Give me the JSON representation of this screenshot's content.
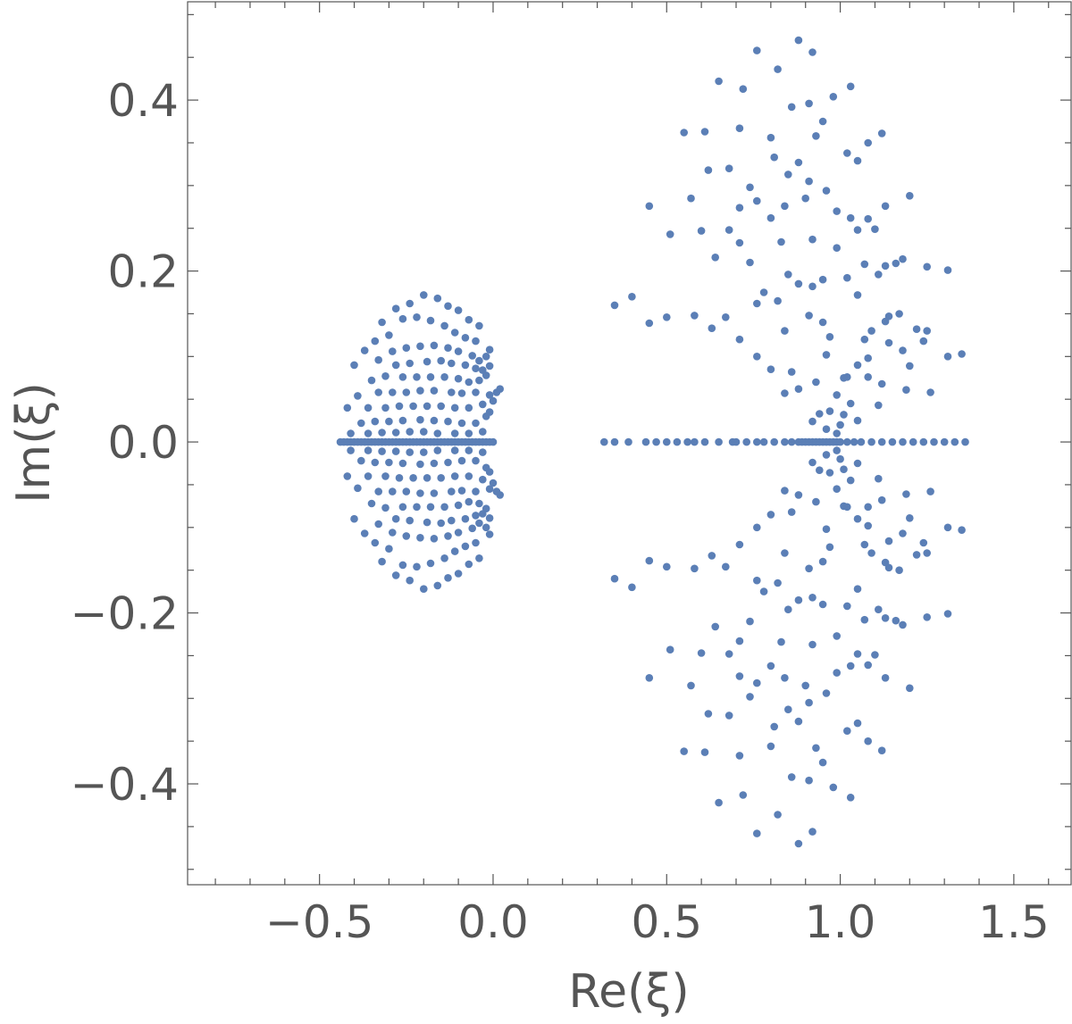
{
  "chart_data": {
    "type": "scatter",
    "title": "",
    "xlabel": "Re(ξ)",
    "ylabel": "Im(ξ)",
    "xlim": [
      -0.88,
      1.665
    ],
    "ylim": [
      -0.518,
      0.515
    ],
    "xticks": [
      {
        "value": -0.5,
        "label": "−0.5"
      },
      {
        "value": 0.0,
        "label": "0.0"
      },
      {
        "value": 0.5,
        "label": "0.5"
      },
      {
        "value": 1.0,
        "label": "1.0"
      },
      {
        "value": 1.5,
        "label": "1.5"
      }
    ],
    "yticks": [
      {
        "value": 0.4,
        "label": "0.4"
      },
      {
        "value": 0.2,
        "label": "0.2"
      },
      {
        "value": 0.0,
        "label": "0.0"
      },
      {
        "value": -0.2,
        "label": "−0.2"
      },
      {
        "value": -0.4,
        "label": "−0.4"
      }
    ],
    "grid": false,
    "marker_color": "#5b7fb6",
    "symmetric_about_real_axis": true,
    "series": [
      {
        "real_axis_points": [
          -0.44,
          -0.43,
          -0.42,
          -0.41,
          -0.4,
          -0.39,
          -0.38,
          -0.37,
          -0.36,
          -0.35,
          -0.34,
          -0.33,
          -0.32,
          -0.31,
          -0.3,
          -0.29,
          -0.28,
          -0.27,
          -0.26,
          -0.25,
          -0.24,
          -0.23,
          -0.22,
          -0.21,
          -0.2,
          -0.19,
          -0.18,
          -0.17,
          -0.16,
          -0.15,
          -0.14,
          -0.13,
          -0.12,
          -0.11,
          -0.1,
          -0.09,
          -0.08,
          -0.07,
          -0.06,
          -0.05,
          -0.04,
          -0.03,
          -0.02,
          -0.01,
          0.0
        ],
        "upper_points": [
          [
            -0.2,
            0.172
          ],
          [
            -0.24,
            0.162
          ],
          [
            -0.28,
            0.156
          ],
          [
            -0.32,
            0.14
          ],
          [
            -0.37,
            0.107
          ],
          [
            -0.4,
            0.09
          ],
          [
            -0.16,
            0.168
          ],
          [
            -0.13,
            0.159
          ],
          [
            -0.1,
            0.154
          ],
          [
            -0.07,
            0.143
          ],
          [
            -0.04,
            0.136
          ],
          [
            -0.26,
            0.144
          ],
          [
            -0.22,
            0.146
          ],
          [
            -0.18,
            0.142
          ],
          [
            -0.14,
            0.136
          ],
          [
            -0.11,
            0.128
          ],
          [
            -0.08,
            0.122
          ],
          [
            -0.05,
            0.118
          ],
          [
            -0.3,
            0.125
          ],
          [
            -0.34,
            0.118
          ],
          [
            -0.25,
            0.11
          ],
          [
            -0.21,
            0.112
          ],
          [
            -0.17,
            0.113
          ],
          [
            -0.13,
            0.11
          ],
          [
            -0.1,
            0.106
          ],
          [
            -0.06,
            0.101
          ],
          [
            -0.04,
            0.095
          ],
          [
            -0.02,
            0.1
          ],
          [
            -0.01,
            0.108
          ],
          [
            -0.29,
            0.106
          ],
          [
            -0.33,
            0.096
          ],
          [
            -0.28,
            0.09
          ],
          [
            -0.24,
            0.092
          ],
          [
            -0.19,
            0.094
          ],
          [
            -0.15,
            0.095
          ],
          [
            -0.12,
            0.092
          ],
          [
            -0.08,
            0.09
          ],
          [
            -0.05,
            0.086
          ],
          [
            -0.03,
            0.084
          ],
          [
            -0.01,
            0.089
          ],
          [
            -0.35,
            0.072
          ],
          [
            -0.31,
            0.077
          ],
          [
            -0.26,
            0.076
          ],
          [
            -0.22,
            0.076
          ],
          [
            -0.18,
            0.076
          ],
          [
            -0.14,
            0.076
          ],
          [
            -0.1,
            0.074
          ],
          [
            -0.07,
            0.07
          ],
          [
            -0.04,
            0.072
          ],
          [
            -0.02,
            0.078
          ],
          [
            -0.39,
            0.054
          ],
          [
            -0.33,
            0.058
          ],
          [
            -0.29,
            0.058
          ],
          [
            -0.25,
            0.058
          ],
          [
            -0.21,
            0.06
          ],
          [
            -0.17,
            0.06
          ],
          [
            -0.12,
            0.058
          ],
          [
            -0.09,
            0.057
          ],
          [
            -0.05,
            0.058
          ],
          [
            -0.01,
            0.055
          ],
          [
            0.01,
            0.058
          ],
          [
            0.02,
            0.062
          ],
          [
            -0.42,
            0.04
          ],
          [
            -0.36,
            0.04
          ],
          [
            -0.31,
            0.04
          ],
          [
            -0.27,
            0.042
          ],
          [
            -0.23,
            0.042
          ],
          [
            -0.19,
            0.042
          ],
          [
            -0.15,
            0.042
          ],
          [
            -0.11,
            0.04
          ],
          [
            -0.07,
            0.04
          ],
          [
            -0.03,
            0.044
          ],
          [
            0.0,
            0.048
          ],
          [
            -0.01,
            0.035
          ],
          [
            -0.38,
            0.022
          ],
          [
            -0.34,
            0.024
          ],
          [
            -0.3,
            0.024
          ],
          [
            -0.26,
            0.025
          ],
          [
            -0.21,
            0.026
          ],
          [
            -0.17,
            0.025
          ],
          [
            -0.13,
            0.024
          ],
          [
            -0.09,
            0.022
          ],
          [
            -0.05,
            0.022
          ],
          [
            -0.02,
            0.03
          ],
          [
            -0.41,
            0.01
          ],
          [
            -0.36,
            0.01
          ],
          [
            -0.32,
            0.011
          ],
          [
            -0.28,
            0.011
          ],
          [
            -0.24,
            0.012
          ],
          [
            -0.2,
            0.012
          ],
          [
            -0.16,
            0.01
          ],
          [
            -0.11,
            0.01
          ],
          [
            -0.07,
            0.01
          ],
          [
            -0.03,
            0.012
          ],
          [
            0.88,
            0.47
          ],
          [
            0.76,
            0.458
          ],
          [
            0.92,
            0.456
          ],
          [
            0.82,
            0.436
          ],
          [
            0.65,
            0.422
          ],
          [
            0.72,
            0.413
          ],
          [
            1.03,
            0.416
          ],
          [
            0.98,
            0.404
          ],
          [
            0.86,
            0.392
          ],
          [
            0.91,
            0.396
          ],
          [
            0.71,
            0.367
          ],
          [
            0.95,
            0.375
          ],
          [
            0.8,
            0.356
          ],
          [
            0.61,
            0.363
          ],
          [
            0.55,
            0.362
          ],
          [
            0.93,
            0.358
          ],
          [
            1.12,
            0.361
          ],
          [
            1.08,
            0.35
          ],
          [
            0.81,
            0.333
          ],
          [
            0.88,
            0.327
          ],
          [
            1.02,
            0.338
          ],
          [
            1.05,
            0.329
          ],
          [
            0.68,
            0.32
          ],
          [
            0.62,
            0.318
          ],
          [
            0.85,
            0.313
          ],
          [
            0.91,
            0.305
          ],
          [
            0.74,
            0.298
          ],
          [
            0.96,
            0.294
          ],
          [
            0.9,
            0.285
          ],
          [
            0.76,
            0.282
          ],
          [
            0.57,
            0.285
          ],
          [
            1.2,
            0.288
          ],
          [
            1.13,
            0.276
          ],
          [
            0.71,
            0.274
          ],
          [
            0.45,
            0.276
          ],
          [
            0.84,
            0.276
          ],
          [
            0.99,
            0.27
          ],
          [
            1.03,
            0.262
          ],
          [
            1.08,
            0.261
          ],
          [
            0.8,
            0.262
          ],
          [
            1.05,
            0.248
          ],
          [
            0.68,
            0.248
          ],
          [
            0.6,
            0.247
          ],
          [
            0.51,
            0.243
          ],
          [
            0.92,
            0.237
          ],
          [
            0.83,
            0.234
          ],
          [
            1.1,
            0.249
          ],
          [
            0.71,
            0.233
          ],
          [
            0.99,
            0.227
          ],
          [
            1.18,
            0.214
          ],
          [
            1.16,
            0.209
          ],
          [
            0.64,
            0.216
          ],
          [
            0.74,
            0.21
          ],
          [
            1.07,
            0.208
          ],
          [
            1.25,
            0.205
          ],
          [
            1.13,
            0.206
          ],
          [
            1.02,
            0.192
          ],
          [
            0.85,
            0.196
          ],
          [
            0.95,
            0.19
          ],
          [
            1.31,
            0.201
          ],
          [
            1.11,
            0.196
          ],
          [
            0.92,
            0.182
          ],
          [
            0.88,
            0.185
          ],
          [
            1.05,
            0.172
          ],
          [
            0.78,
            0.175
          ],
          [
            0.4,
            0.17
          ],
          [
            0.35,
            0.16
          ],
          [
            0.82,
            0.165
          ],
          [
            0.76,
            0.162
          ],
          [
            1.14,
            0.147
          ],
          [
            1.13,
            0.141
          ],
          [
            0.45,
            0.139
          ],
          [
            0.5,
            0.146
          ],
          [
            0.58,
            0.148
          ],
          [
            0.67,
            0.146
          ],
          [
            0.63,
            0.133
          ],
          [
            0.71,
            0.12
          ],
          [
            0.91,
            0.148
          ],
          [
            0.95,
            0.14
          ],
          [
            1.09,
            0.13
          ],
          [
            1.17,
            0.15
          ],
          [
            1.07,
            0.12
          ],
          [
            1.25,
            0.13
          ],
          [
            1.22,
            0.132
          ],
          [
            0.97,
            0.123
          ],
          [
            1.14,
            0.116
          ],
          [
            1.24,
            0.118
          ],
          [
            1.31,
            0.1
          ],
          [
            0.84,
            0.13
          ],
          [
            1.35,
            0.103
          ],
          [
            1.08,
            0.098
          ],
          [
            1.18,
            0.107
          ],
          [
            0.76,
            0.1
          ],
          [
            0.96,
            0.102
          ],
          [
            1.05,
            0.09
          ],
          [
            1.2,
            0.089
          ],
          [
            0.8,
            0.085
          ],
          [
            1.02,
            0.076
          ],
          [
            1.01,
            0.075
          ],
          [
            0.86,
            0.082
          ],
          [
            1.08,
            0.076
          ],
          [
            0.93,
            0.07
          ],
          [
            1.12,
            0.068
          ],
          [
            1.19,
            0.061
          ],
          [
            1.26,
            0.058
          ],
          [
            0.99,
            0.055
          ],
          [
            0.84,
            0.057
          ],
          [
            0.88,
            0.062
          ],
          [
            1.03,
            0.045
          ],
          [
            1.11,
            0.043
          ],
          [
            0.97,
            0.036
          ],
          [
            0.94,
            0.033
          ],
          [
            1.01,
            0.032
          ],
          [
            1.05,
            0.025
          ],
          [
            0.92,
            0.024
          ],
          [
            1.0,
            0.02
          ],
          [
            0.96,
            0.015
          ],
          [
            0.99,
            0.01
          ]
        ]
      },
      {
        "real_axis_points": [
          0.32,
          0.35,
          0.39,
          0.44,
          0.47,
          0.5,
          0.53,
          0.56,
          0.58,
          0.61,
          0.65,
          0.69,
          0.7,
          0.73,
          0.76,
          0.78,
          0.81,
          0.84,
          0.86,
          0.88,
          0.89,
          0.9,
          0.91,
          0.92,
          0.93,
          0.94,
          0.95,
          0.96,
          0.97,
          0.98,
          0.99,
          1.0,
          1.02,
          1.04,
          1.06,
          1.09,
          1.12,
          1.15,
          1.18,
          1.21,
          1.24,
          1.27,
          1.3,
          1.33,
          1.36
        ]
      }
    ]
  }
}
